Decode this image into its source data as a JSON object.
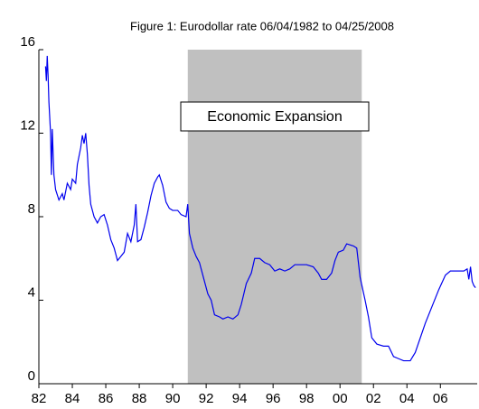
{
  "chart_data": {
    "type": "line",
    "title": "Figure 1: Eurodollar rate 06/04/1982 to 04/25/2008",
    "color": "#0000ee",
    "x": [
      1982.4,
      1982.45,
      1982.5,
      1982.55,
      1982.6,
      1982.7,
      1982.75,
      1982.8,
      1982.9,
      1983.0,
      1983.2,
      1983.4,
      1983.5,
      1983.7,
      1983.9,
      1984.0,
      1984.2,
      1984.3,
      1984.5,
      1984.6,
      1984.7,
      1984.8,
      1984.9,
      1985.0,
      1985.1,
      1985.3,
      1985.5,
      1985.7,
      1985.9,
      1986.1,
      1986.3,
      1986.5,
      1986.7,
      1986.9,
      1987.1,
      1987.3,
      1987.5,
      1987.7,
      1987.8,
      1987.9,
      1988.1,
      1988.3,
      1988.5,
      1988.7,
      1988.9,
      1989.1,
      1989.2,
      1989.4,
      1989.6,
      1989.8,
      1990.0,
      1990.3,
      1990.5,
      1990.8,
      1990.9,
      1991.0,
      1991.2,
      1991.4,
      1991.6,
      1991.9,
      1992.1,
      1992.3,
      1992.5,
      1992.8,
      1993.0,
      1993.3,
      1993.6,
      1993.9,
      1994.1,
      1994.4,
      1994.7,
      1994.9,
      1995.2,
      1995.5,
      1995.8,
      1996.1,
      1996.4,
      1996.7,
      1997.0,
      1997.3,
      1997.7,
      1998.0,
      1998.4,
      1998.7,
      1998.9,
      1999.2,
      1999.5,
      1999.7,
      1999.9,
      2000.2,
      2000.4,
      2000.8,
      2001.0,
      2001.2,
      2001.5,
      2001.7,
      2001.9,
      2002.2,
      2002.6,
      2002.9,
      2003.2,
      2003.5,
      2003.8,
      2004.2,
      2004.5,
      2004.8,
      2005.1,
      2005.5,
      2005.9,
      2006.3,
      2006.6,
      2007.0,
      2007.4,
      2007.6,
      2007.7,
      2007.8,
      2007.9,
      2008.0,
      2008.1
    ],
    "values": [
      15.2,
      14.5,
      15.7,
      14.8,
      13.5,
      12.0,
      10.0,
      12.2,
      10.0,
      9.3,
      8.8,
      9.1,
      8.8,
      9.6,
      9.3,
      9.8,
      9.6,
      10.5,
      11.3,
      11.9,
      11.5,
      12.0,
      11.0,
      9.5,
      8.6,
      8.0,
      7.7,
      8.0,
      8.1,
      7.6,
      6.9,
      6.5,
      5.9,
      6.1,
      6.3,
      7.2,
      6.8,
      7.6,
      8.6,
      6.8,
      6.9,
      7.5,
      8.2,
      9.0,
      9.6,
      9.9,
      10.0,
      9.5,
      8.7,
      8.4,
      8.3,
      8.3,
      8.1,
      8.0,
      8.6,
      7.2,
      6.5,
      6.1,
      5.8,
      4.9,
      4.3,
      4.0,
      3.3,
      3.2,
      3.1,
      3.2,
      3.1,
      3.3,
      3.8,
      4.8,
      5.3,
      6.0,
      6.0,
      5.8,
      5.7,
      5.4,
      5.5,
      5.4,
      5.5,
      5.7,
      5.7,
      5.7,
      5.6,
      5.3,
      5.0,
      5.0,
      5.3,
      5.9,
      6.3,
      6.4,
      6.7,
      6.6,
      6.5,
      5.1,
      4.0,
      3.2,
      2.2,
      1.9,
      1.8,
      1.8,
      1.3,
      1.2,
      1.1,
      1.1,
      1.5,
      2.2,
      2.9,
      3.7,
      4.5,
      5.2,
      5.4,
      5.4,
      5.4,
      5.5,
      5.0,
      5.6,
      4.9,
      4.7,
      4.6
    ],
    "xlim": [
      1982,
      2008.2
    ],
    "xticks": [
      {
        "value": 1982,
        "label": "82"
      },
      {
        "value": 1984,
        "label": "84"
      },
      {
        "value": 1986,
        "label": "86"
      },
      {
        "value": 1988,
        "label": "88"
      },
      {
        "value": 1990,
        "label": "90"
      },
      {
        "value": 1992,
        "label": "92"
      },
      {
        "value": 1994,
        "label": "94"
      },
      {
        "value": 1996,
        "label": "96"
      },
      {
        "value": 1998,
        "label": "98"
      },
      {
        "value": 2000,
        "label": "00"
      },
      {
        "value": 2002,
        "label": "02"
      },
      {
        "value": 2004,
        "label": "04"
      },
      {
        "value": 2006,
        "label": "06"
      }
    ],
    "ylim": [
      0,
      16
    ],
    "yticks": [
      0,
      4,
      8,
      12,
      16
    ],
    "shaded_region": {
      "x": [
        1990.9,
        2001.3
      ],
      "color": "#c0c0c0"
    },
    "annotation": "Economic Expansion"
  }
}
